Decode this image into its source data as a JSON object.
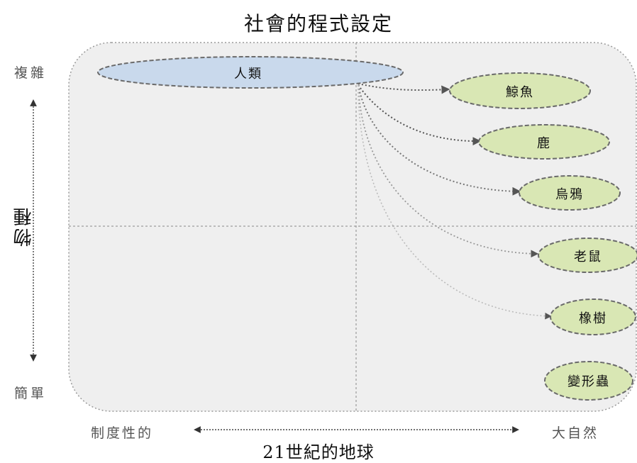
{
  "title": "社會的程式設定",
  "axes": {
    "y_top": "複雜",
    "y_bottom": "簡單",
    "y_label": "物種",
    "x_left": "制度性的",
    "x_right": "大自然",
    "x_label": "21世紀的地球"
  },
  "nodes": [
    {
      "id": "human",
      "label": "人類",
      "color": "#c9d9ec"
    },
    {
      "id": "whale",
      "label": "鯨魚",
      "color": "#d9e7b4"
    },
    {
      "id": "deer",
      "label": "鹿",
      "color": "#d9e7b4"
    },
    {
      "id": "crow",
      "label": "烏鴉",
      "color": "#d9e7b4"
    },
    {
      "id": "rat",
      "label": "老鼠",
      "color": "#d9e7b4"
    },
    {
      "id": "oak",
      "label": "橡樹",
      "color": "#d9e7b4"
    },
    {
      "id": "caterpillar",
      "label": "變形蟲",
      "color": "#d9e7b4"
    }
  ],
  "edges": [
    {
      "from": "human",
      "to": "whale"
    },
    {
      "from": "human",
      "to": "deer"
    },
    {
      "from": "human",
      "to": "crow"
    },
    {
      "from": "human",
      "to": "rat"
    },
    {
      "from": "human",
      "to": "oak"
    }
  ],
  "colors": {
    "panel_fill": "#efefef",
    "panel_border": "#9a9a9a",
    "human_fill": "#c9d9ec",
    "species_fill": "#d9e7b4",
    "outline": "#6a6a6a"
  }
}
